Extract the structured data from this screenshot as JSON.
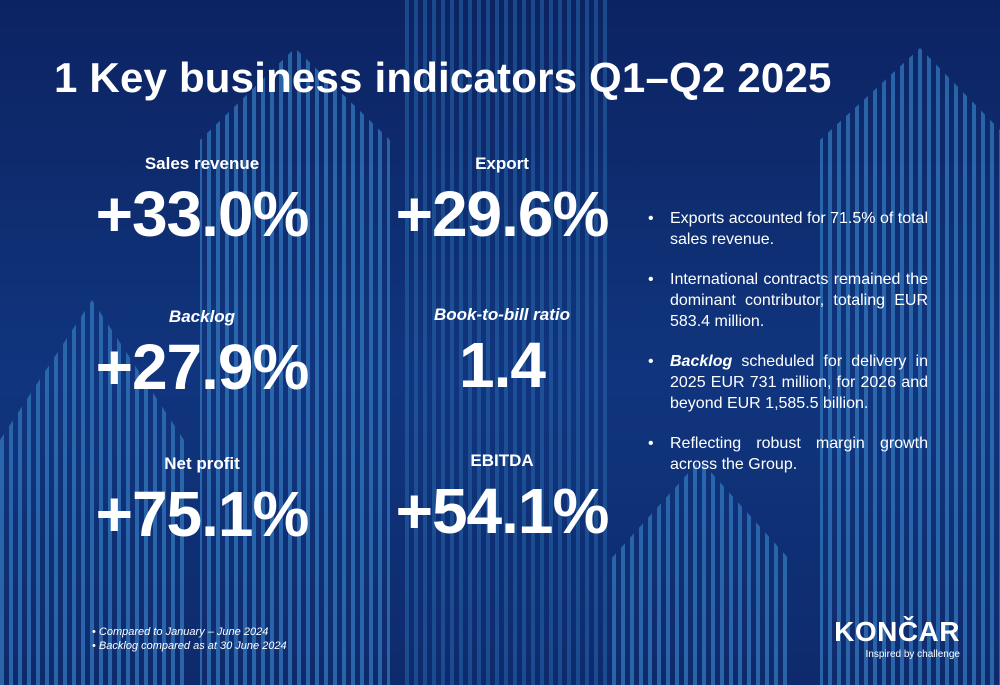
{
  "slide": {
    "title": "1 Key business indicators Q1–Q2 2025",
    "kpis": [
      {
        "label": "Sales revenue",
        "value": "+33.0%"
      },
      {
        "label": "Export",
        "value": "+29.6%"
      },
      {
        "label": "Backlog",
        "value": "+27.9%"
      },
      {
        "label": "Book-to-bill ratio",
        "value": "1.4"
      },
      {
        "label": "Net profit",
        "value": "+75.1%"
      },
      {
        "label": "EBITDA",
        "value": "+54.1%"
      }
    ],
    "bullets": [
      {
        "text": "Exports accounted for 71.5% of total sales revenue."
      },
      {
        "text": "International contracts remained the dominant contributor, totaling EUR 583.4 million."
      },
      {
        "bold": "Backlog",
        "text": " scheduled for delivery in 2025 EUR 731 million, for 2026 and beyond EUR 1,585.5 billion."
      },
      {
        "text": "Reflecting robust margin growth across the Group."
      }
    ],
    "notes": [
      "Compared to January – June 2024",
      "Backlog compared as at 30 June 2024"
    ],
    "logo": {
      "name": "KONČAR",
      "tagline": "Inspired by challenge"
    }
  },
  "colors": {
    "background": "#0e2a6e",
    "stripe_light": "#2b7fc4",
    "stripe_dark": "#1a4fa0",
    "text": "#ffffff"
  }
}
